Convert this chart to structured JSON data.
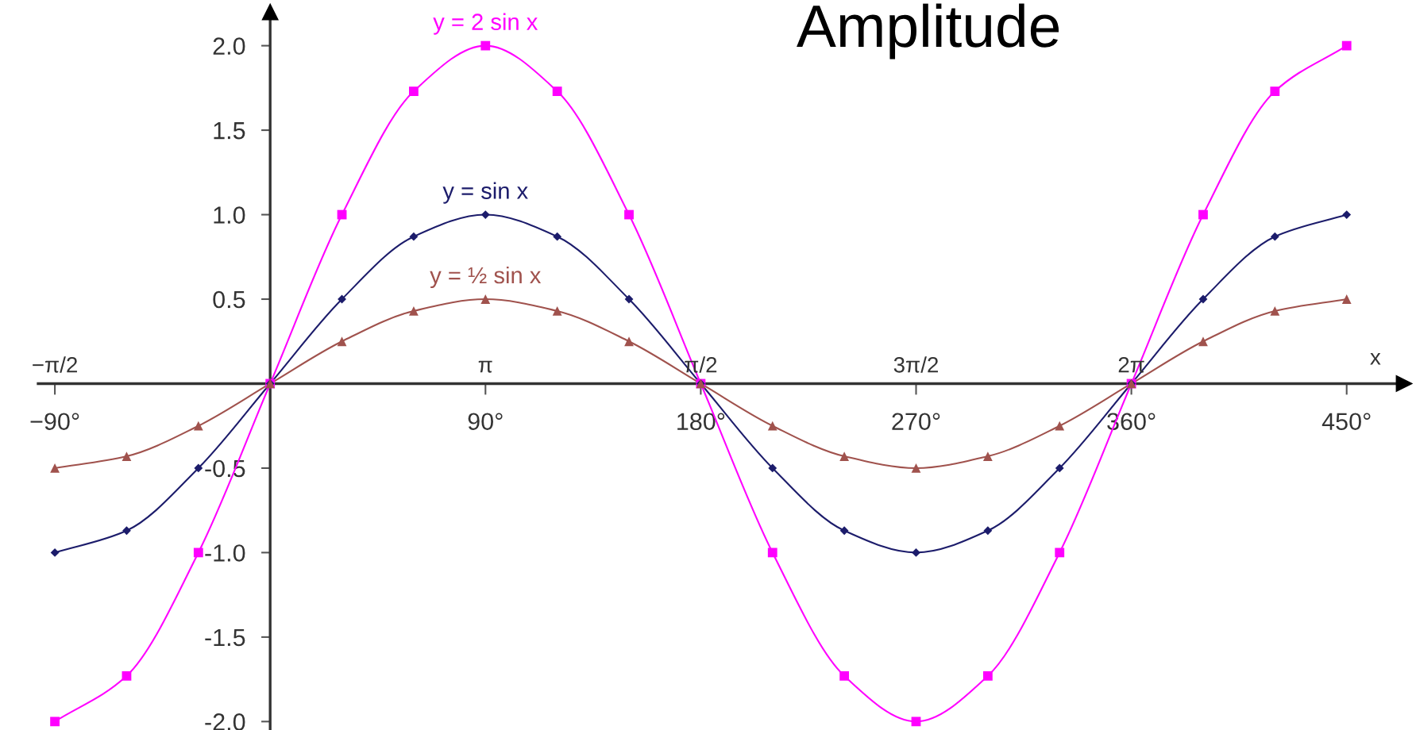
{
  "chart_data": {
    "type": "line",
    "title": "Amplitude",
    "xlabel": "x",
    "x": [
      -90,
      -60,
      -30,
      0,
      30,
      60,
      90,
      120,
      150,
      180,
      210,
      240,
      270,
      300,
      330,
      360,
      390,
      420,
      450
    ],
    "series": [
      {
        "name": "y = 2 sin x",
        "color": "#ff00ff",
        "marker": "square",
        "values": [
          -2,
          -1.73,
          -1,
          0,
          1,
          1.73,
          2,
          1.73,
          1,
          0,
          -1,
          -1.73,
          -2,
          -1.73,
          -1,
          0,
          1,
          1.73,
          2
        ]
      },
      {
        "name": "y = sin x",
        "color": "#1c1c6b",
        "marker": "diamond",
        "values": [
          -1,
          -0.87,
          -0.5,
          0,
          0.5,
          0.87,
          1,
          0.87,
          0.5,
          0,
          -0.5,
          -0.87,
          -1,
          -0.87,
          -0.5,
          0,
          0.5,
          0.87,
          1
        ]
      },
      {
        "name": "y = ½ sin x",
        "color": "#a0524d",
        "marker": "triangle",
        "values": [
          -0.5,
          -0.43,
          -0.25,
          0,
          0.25,
          0.43,
          0.5,
          0.43,
          0.25,
          0,
          -0.25,
          -0.43,
          -0.5,
          -0.43,
          -0.25,
          0,
          0.25,
          0.43,
          0.5
        ]
      }
    ],
    "xlim": [
      -97,
      474
    ],
    "ylim": [
      -2.05,
      2.2
    ],
    "xticks": [
      {
        "value": -90,
        "label": "−90°"
      },
      {
        "value": 90,
        "label": "90°"
      },
      {
        "value": 180,
        "label": "180°"
      },
      {
        "value": 270,
        "label": "270°"
      },
      {
        "value": 360,
        "label": "360°"
      },
      {
        "value": 450,
        "label": "450°"
      }
    ],
    "yticks": [
      {
        "value": 2,
        "label": "2.0"
      },
      {
        "value": 1.5,
        "label": "1.5"
      },
      {
        "value": 1,
        "label": "1.0"
      },
      {
        "value": 0.5,
        "label": "0.5"
      },
      {
        "value": -0.5,
        "label": "-0.5"
      },
      {
        "value": -1,
        "label": "-1.0"
      },
      {
        "value": -1.5,
        "label": "-1.5"
      },
      {
        "value": -2,
        "label": "-2.0"
      }
    ],
    "annotations": [
      "−π/2",
      "π",
      "π/2",
      "3π/2",
      "2π"
    ],
    "grid": false,
    "legend": false,
    "line_style": "solid"
  }
}
